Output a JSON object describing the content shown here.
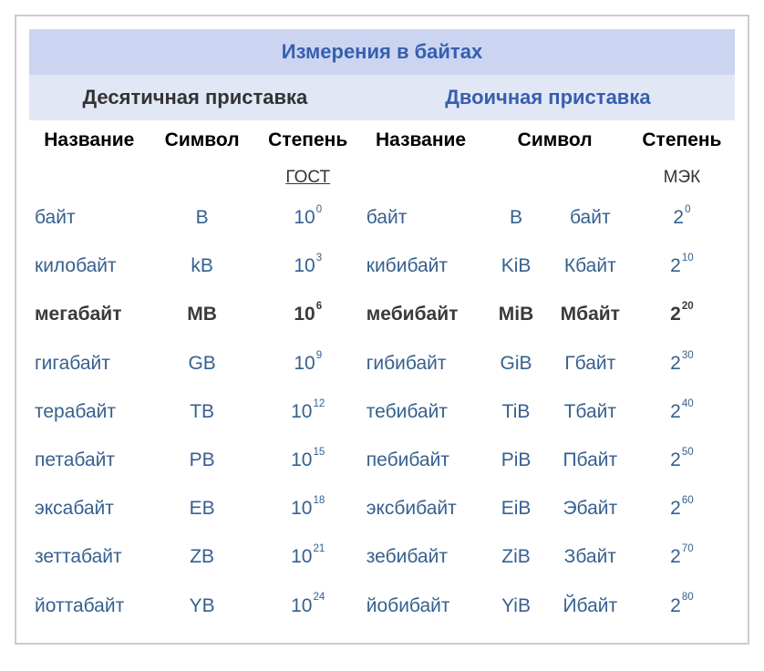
{
  "styling": {
    "outer_border_color": "#cccccc",
    "row_title_bg": "#cbd5f2",
    "row_title_text": "#365fae",
    "row_group_bg": "#e2e7f6",
    "group_dec_text": "#333333",
    "group_bin_text": "#365fae",
    "data_text_color": "#36608f",
    "bold_text_color": "#3a3a3a",
    "font_family": "Arial, sans-serif"
  },
  "table": {
    "title": "Измерения в байтах",
    "group_decimal": "Десятичная приставка",
    "group_binary": "Двоичная приставка",
    "col_headers": {
      "name1": "Название",
      "symbol1": "Символ",
      "power1": "Степень",
      "name2": "Название",
      "symbol2": "Символ",
      "power2": "Степень"
    },
    "standards": {
      "decimal": "ГОСТ",
      "binary": "МЭК"
    },
    "rows": [
      {
        "d_name": "байт",
        "d_sym": "B",
        "d_base": "10",
        "d_exp": "0",
        "b_name": "байт",
        "b_sym1": "B",
        "b_sym2": "байт",
        "b_base": "2",
        "b_exp": "0",
        "bold": false
      },
      {
        "d_name": "килобайт",
        "d_sym": "kB",
        "d_base": "10",
        "d_exp": "3",
        "b_name": "кибибайт",
        "b_sym1": "KiB",
        "b_sym2": "Кбайт",
        "b_base": "2",
        "b_exp": "10",
        "bold": false
      },
      {
        "d_name": "мегабайт",
        "d_sym": "MB",
        "d_base": "10",
        "d_exp": "6",
        "b_name": "мебибайт",
        "b_sym1": "MiB",
        "b_sym2": "Мбайт",
        "b_base": "2",
        "b_exp": "20",
        "bold": true
      },
      {
        "d_name": "гигабайт",
        "d_sym": "GB",
        "d_base": "10",
        "d_exp": "9",
        "b_name": "гибибайт",
        "b_sym1": "GiB",
        "b_sym2": "Гбайт",
        "b_base": "2",
        "b_exp": "30",
        "bold": false
      },
      {
        "d_name": "терабайт",
        "d_sym": "TB",
        "d_base": "10",
        "d_exp": "12",
        "b_name": "тебибайт",
        "b_sym1": "TiB",
        "b_sym2": "Тбайт",
        "b_base": "2",
        "b_exp": "40",
        "bold": false
      },
      {
        "d_name": "петабайт",
        "d_sym": "PB",
        "d_base": "10",
        "d_exp": "15",
        "b_name": "пебибайт",
        "b_sym1": "PiB",
        "b_sym2": "Пбайт",
        "b_base": "2",
        "b_exp": "50",
        "bold": false
      },
      {
        "d_name": "эксабайт",
        "d_sym": "EB",
        "d_base": "10",
        "d_exp": "18",
        "b_name": "эксбибайт",
        "b_sym1": "EiB",
        "b_sym2": "Эбайт",
        "b_base": "2",
        "b_exp": "60",
        "bold": false
      },
      {
        "d_name": "зеттабайт",
        "d_sym": "ZB",
        "d_base": "10",
        "d_exp": "21",
        "b_name": "зебибайт",
        "b_sym1": "ZiB",
        "b_sym2": "Збайт",
        "b_base": "2",
        "b_exp": "70",
        "bold": false
      },
      {
        "d_name": "йоттабайт",
        "d_sym": "YB",
        "d_base": "10",
        "d_exp": "24",
        "b_name": "йобибайт",
        "b_sym1": "YiB",
        "b_sym2": "Йбайт",
        "b_base": "2",
        "b_exp": "80",
        "bold": false
      }
    ]
  }
}
